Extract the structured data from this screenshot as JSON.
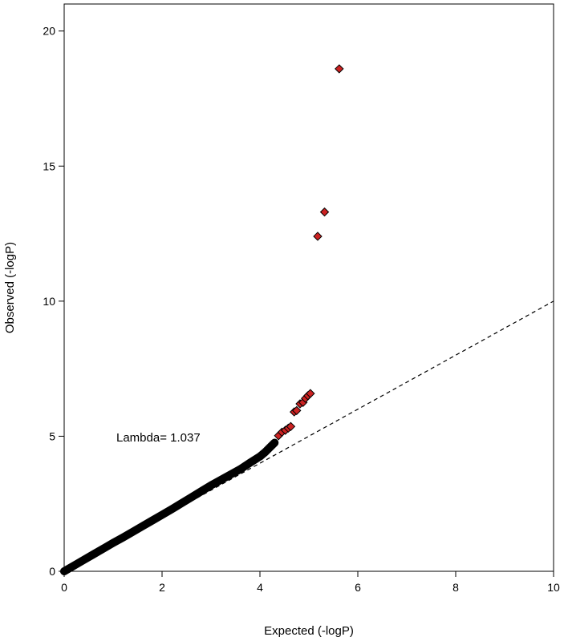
{
  "chart_data": {
    "type": "scatter",
    "title": "",
    "xlabel": "Expected (-logP)",
    "ylabel": "Observed (-logP)",
    "xlim": [
      0,
      10
    ],
    "ylim": [
      0,
      21
    ],
    "xticks": [
      "0",
      "2",
      "4",
      "6",
      "8",
      "10"
    ],
    "yticks": [
      "0",
      "5",
      "10",
      "15",
      "20"
    ],
    "grid": false,
    "legend": "none",
    "annotation": "Lambda= 1.037",
    "reference_line": {
      "style": "dashed",
      "from": [
        0,
        0
      ],
      "to": [
        10,
        10
      ]
    },
    "colors": {
      "bulk": "#000000",
      "significant": "#cc2222",
      "reference": "#000000"
    },
    "bulk_points": [
      [
        0.0,
        0.0
      ],
      [
        0.2,
        0.21
      ],
      [
        0.4,
        0.42
      ],
      [
        0.6,
        0.63
      ],
      [
        0.8,
        0.84
      ],
      [
        1.0,
        1.05
      ],
      [
        1.2,
        1.25
      ],
      [
        1.4,
        1.46
      ],
      [
        1.6,
        1.67
      ],
      [
        1.8,
        1.88
      ],
      [
        2.0,
        2.09
      ],
      [
        2.2,
        2.3
      ],
      [
        2.4,
        2.52
      ],
      [
        2.6,
        2.74
      ],
      [
        2.8,
        2.96
      ],
      [
        3.0,
        3.18
      ],
      [
        3.2,
        3.38
      ],
      [
        3.4,
        3.58
      ],
      [
        3.6,
        3.78
      ],
      [
        3.8,
        4.02
      ],
      [
        4.0,
        4.25
      ],
      [
        4.1,
        4.4
      ],
      [
        4.2,
        4.58
      ],
      [
        4.3,
        4.76
      ]
    ],
    "highlight_points": [
      [
        4.38,
        5.02
      ],
      [
        4.45,
        5.15
      ],
      [
        4.52,
        5.22
      ],
      [
        4.58,
        5.3
      ],
      [
        4.63,
        5.36
      ],
      [
        4.7,
        5.9
      ],
      [
        4.75,
        5.95
      ],
      [
        4.82,
        6.2
      ],
      [
        4.88,
        6.25
      ],
      [
        4.93,
        6.4
      ],
      [
        4.98,
        6.5
      ],
      [
        5.03,
        6.58
      ],
      [
        5.18,
        12.4
      ],
      [
        5.32,
        13.3
      ],
      [
        5.62,
        18.6
      ]
    ]
  }
}
